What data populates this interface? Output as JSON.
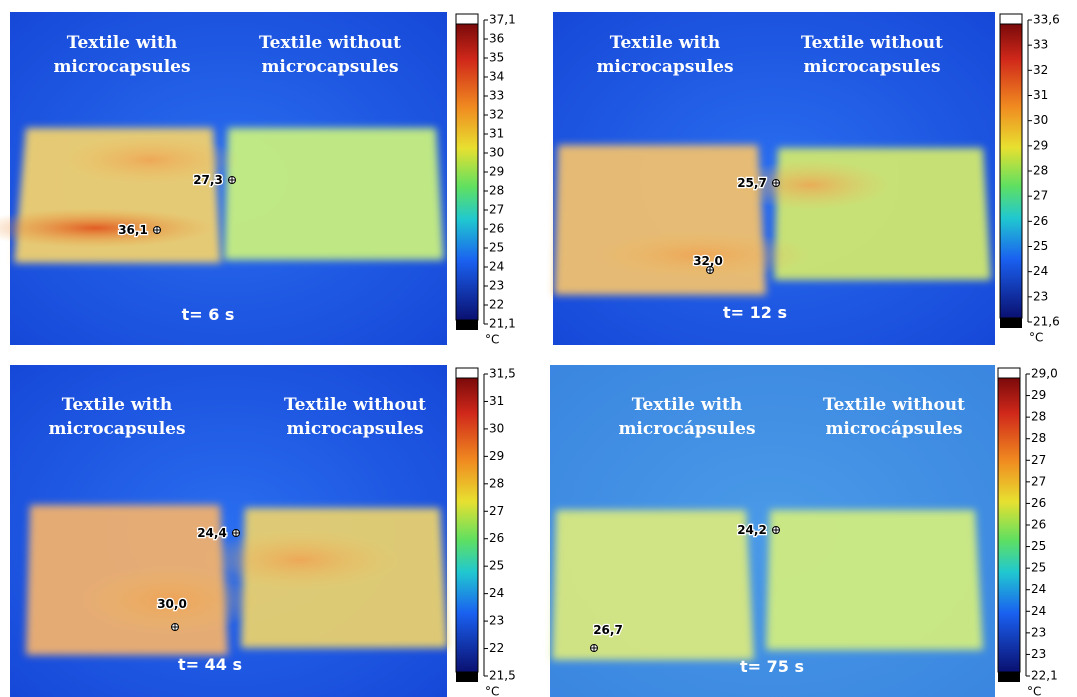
{
  "panels": [
    {
      "left": [
        "Textile with",
        "microcapsules"
      ],
      "right": [
        "Textile without",
        "microcapsules"
      ],
      "time": "t= 6 s",
      "readings": [
        "27,3",
        "36,1"
      ],
      "ticks": [
        "37,1",
        "36",
        "35",
        "34",
        "33",
        "32",
        "31",
        "30",
        "29",
        "28",
        "27",
        "26",
        "25",
        "24",
        "23",
        "22",
        "21,1"
      ],
      "unit": "°C"
    },
    {
      "left": [
        "Textile with",
        "microcapsules"
      ],
      "right": [
        "Textile without",
        "microcapsules"
      ],
      "time": "t= 12 s",
      "readings": [
        "25,7",
        "32,0"
      ],
      "ticks": [
        "33,6",
        "33",
        "32",
        "31",
        "30",
        "29",
        "28",
        "27",
        "26",
        "25",
        "24",
        "23",
        "21,6"
      ],
      "unit": "°C"
    },
    {
      "left": [
        "Textile with",
        "microcapsules"
      ],
      "right": [
        "Textile without",
        "microcapsules"
      ],
      "time": "t= 44 s",
      "readings": [
        "24,4",
        "30,0"
      ],
      "ticks": [
        "31,5",
        "31",
        "30",
        "29",
        "28",
        "27",
        "26",
        "25",
        "24",
        "23",
        "22",
        "21,5"
      ],
      "unit": "°C"
    },
    {
      "left": [
        "Textile with",
        "microcápsules"
      ],
      "right": [
        "Textile without",
        "microcápsules"
      ],
      "time": "t= 75 s",
      "readings": [
        "24,2",
        "26,7"
      ],
      "ticks": [
        "29,0",
        "29",
        "28",
        "28",
        "27",
        "27",
        "26",
        "26",
        "25",
        "25",
        "24",
        "24",
        "23",
        "23",
        "22,1"
      ],
      "unit": "°C"
    }
  ]
}
